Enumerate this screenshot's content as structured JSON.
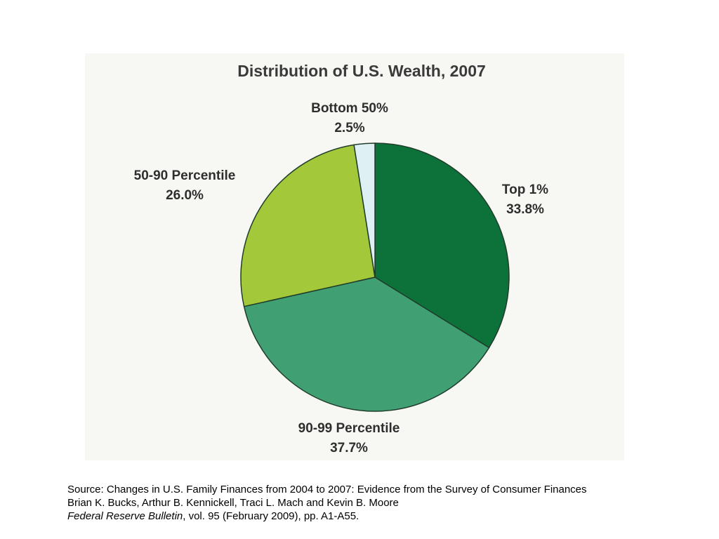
{
  "chart_data": {
    "type": "pie",
    "title": "Distribution of U.S. Wealth, 2007",
    "slices": [
      {
        "label": "Top 1%",
        "value": 33.8,
        "value_label": "33.8%",
        "color": "#0d723a"
      },
      {
        "label": "90-99 Percentile",
        "value": 37.7,
        "value_label": "37.7%",
        "color": "#40a073"
      },
      {
        "label": "50-90 Percentile",
        "value": 26.0,
        "value_label": "26.0%",
        "color": "#a3c93a"
      },
      {
        "label": "Bottom 50%",
        "value": 2.5,
        "value_label": "2.5%",
        "color": "#dff0f4"
      }
    ],
    "start_angle_deg": 0,
    "direction": "clockwise",
    "stroke_color": "#1f3d2a"
  },
  "source": {
    "line1": "Source: Changes in U.S. Family Finances from 2004 to 2007: Evidence from the Survey of Consumer Finances",
    "line2": "Brian K. Bucks, Arthur B. Kennickell, Traci L. Mach and Kevin B. Moore",
    "journal": "Federal Reserve Bulletin",
    "line3_rest": ", vol. 95 (February 2009), pp. A1-A55."
  }
}
